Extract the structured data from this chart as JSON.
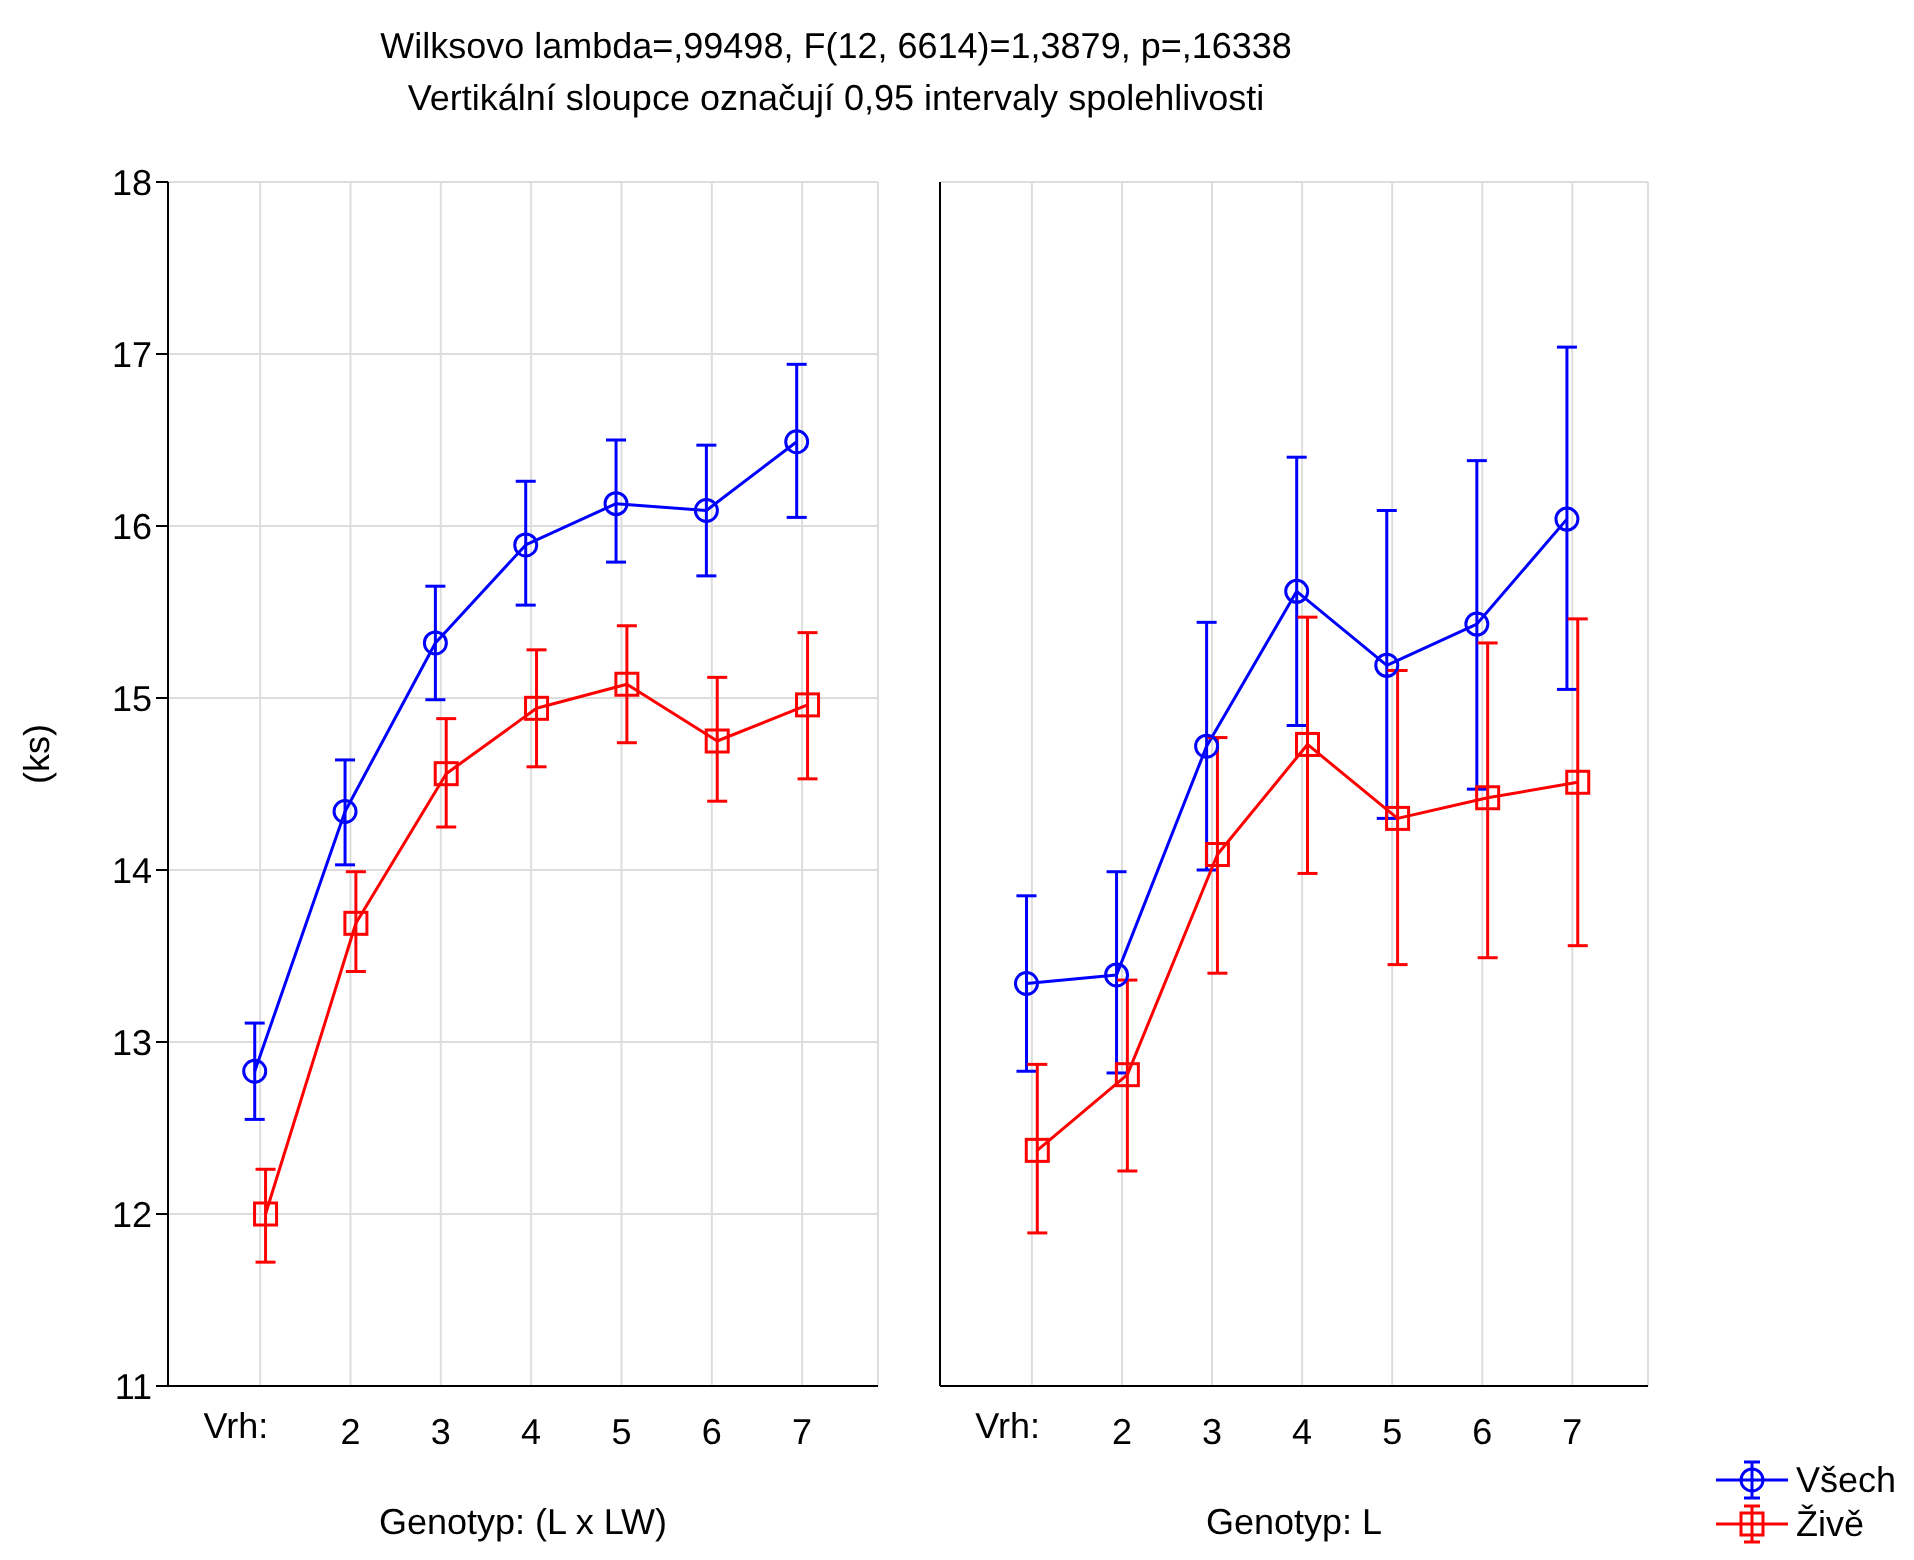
{
  "chart_data": [
    {
      "type": "line",
      "title": "Wilksovo lambda=,99498, F(12, 6614)=1,3879, p=,16338",
      "subtitle": "Vertikální sloupce označují 0,95 intervaly spolehlivosti",
      "xlabel": "Genotyp: (L x LW)",
      "ylabel": "(ks)",
      "categories": [
        null,
        "2",
        "3",
        "4",
        "5",
        "6",
        "7"
      ],
      "annotations": [
        "Vrh:"
      ],
      "ylim": [
        11,
        18
      ],
      "yticks": [
        11,
        12,
        13,
        14,
        15,
        16,
        17,
        18
      ],
      "grid": true,
      "line_style": "solid",
      "series": [
        {
          "color": "#0000ff",
          "marker": "circle",
          "values": [
            12.83,
            14.34,
            15.32,
            15.89,
            16.13,
            16.09,
            16.49
          ],
          "errors": [
            [
              12.55,
              13.11
            ],
            [
              14.03,
              14.64
            ],
            [
              14.99,
              15.65
            ],
            [
              15.54,
              16.26
            ],
            [
              15.79,
              16.5
            ],
            [
              15.71,
              16.47
            ],
            [
              16.05,
              16.94
            ]
          ]
        },
        {
          "color": "#ff0000",
          "marker": "square",
          "values": [
            12.0,
            13.69,
            14.56,
            14.94,
            15.08,
            14.75,
            14.96
          ],
          "errors": [
            [
              11.72,
              12.26
            ],
            [
              13.41,
              13.99
            ],
            [
              14.25,
              14.88
            ],
            [
              14.6,
              15.28
            ],
            [
              14.74,
              15.42
            ],
            [
              14.4,
              15.12
            ],
            [
              14.53,
              15.38
            ]
          ]
        }
      ]
    },
    {
      "type": "line",
      "xlabel": "Genotyp: L",
      "categories": [
        null,
        "2",
        "3",
        "4",
        "5",
        "6",
        "7"
      ],
      "annotations": [
        "Vrh:"
      ],
      "ylim": [
        11,
        18
      ],
      "yticks": [
        11,
        12,
        13,
        14,
        15,
        16,
        17,
        18
      ],
      "tick_labels": "x",
      "grid": true,
      "line_style": "solid",
      "legend": "bottom right",
      "series": [
        {
          "name": "Všech",
          "color": "#0000ff",
          "marker": "circle",
          "values": [
            13.34,
            13.39,
            14.72,
            15.62,
            15.19,
            15.43,
            16.04
          ],
          "errors": [
            [
              12.83,
              13.85
            ],
            [
              12.82,
              13.99
            ],
            [
              14.0,
              15.44
            ],
            [
              14.84,
              16.4
            ],
            [
              14.3,
              16.09
            ],
            [
              14.47,
              16.38
            ],
            [
              15.05,
              17.04
            ]
          ]
        },
        {
          "name": "Živě",
          "color": "#ff0000",
          "marker": "square",
          "values": [
            12.37,
            12.81,
            14.09,
            14.73,
            14.3,
            14.42,
            14.51
          ],
          "errors": [
            [
              11.89,
              12.87
            ],
            [
              12.25,
              13.36
            ],
            [
              13.4,
              14.77
            ],
            [
              13.98,
              15.47
            ],
            [
              13.45,
              15.16
            ],
            [
              13.49,
              15.32
            ],
            [
              13.56,
              15.46
            ]
          ]
        }
      ]
    }
  ]
}
